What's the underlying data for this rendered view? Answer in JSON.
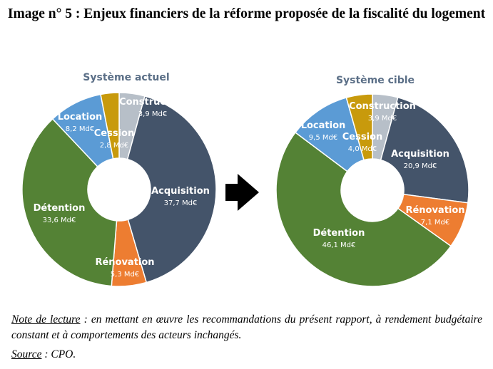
{
  "title": "Image n° 5 : Enjeux financiers de la réforme proposée de la fiscalité du logement",
  "chart_data": [
    {
      "type": "pie",
      "title": "Système actuel",
      "unit": "Md€",
      "slices": [
        {
          "name": "Construction",
          "value": 3.9,
          "label": "3,9 Md€",
          "color": "#b7bfc8"
        },
        {
          "name": "Acquisition",
          "value": 37.7,
          "label": "37,7 Md€",
          "color": "#44546a"
        },
        {
          "name": "Rénovation",
          "value": 5.3,
          "label": "5,3 Md€",
          "color": "#ed7d31"
        },
        {
          "name": "Détention",
          "value": 33.6,
          "label": "33,6 Md€",
          "color": "#548235"
        },
        {
          "name": "Location",
          "value": 8.2,
          "label": "8,2 Md€",
          "color": "#5b9bd5"
        },
        {
          "name": "Cession",
          "value": 2.8,
          "label": "2,8 Md€",
          "color": "#c89a0c"
        }
      ]
    },
    {
      "type": "pie",
      "title": "Système cible",
      "unit": "Md€",
      "slices": [
        {
          "name": "Construction",
          "value": 3.9,
          "label": "3,9 Md€",
          "color": "#b7bfc8"
        },
        {
          "name": "Acquisition",
          "value": 20.9,
          "label": "20,9 Md€",
          "color": "#44546a"
        },
        {
          "name": "Rénovation",
          "value": 7.1,
          "label": "7,1 Md€",
          "color": "#ed7d31"
        },
        {
          "name": "Détention",
          "value": 46.1,
          "label": "46,1 Md€",
          "color": "#548235"
        },
        {
          "name": "Location",
          "value": 9.5,
          "label": "9,5 Md€",
          "color": "#5b9bd5"
        },
        {
          "name": "Cession",
          "value": 4.0,
          "label": "4,0 Md€",
          "color": "#c89a0c"
        }
      ]
    }
  ],
  "note": {
    "label": "Note de lecture",
    "text": " : en mettant en œuvre les recommandations du présent rapport, à rendement budgétaire constant et à comportements des acteurs inchangés."
  },
  "source": {
    "label": "Source",
    "text": " : CPO."
  }
}
